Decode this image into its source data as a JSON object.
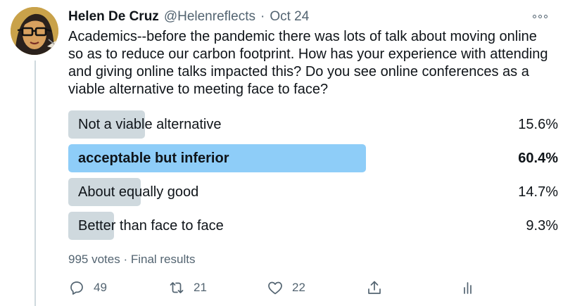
{
  "tweet": {
    "author": {
      "name": "Helen De Cruz",
      "handle": "@Helenreflects",
      "separator": "·",
      "date": "Oct 24"
    },
    "text": "Academics--before the pandemic there was lots of talk about moving online so as to reduce our carbon footprint. How has your experience with attending and giving online talks impacted this? Do you see online conferences as a viable alternative to meeting face to face?",
    "poll": {
      "options": [
        {
          "label": "Not a viable alternative",
          "percent_label": "15.6%",
          "percent": 15.6
        },
        {
          "label": "acceptable but inferior",
          "percent_label": "60.4%",
          "percent": 60.4,
          "winner": true
        },
        {
          "label": "About equally good",
          "percent_label": "14.7%",
          "percent": 14.7
        },
        {
          "label": "Better than face to face",
          "percent_label": "9.3%",
          "percent": 9.3
        }
      ],
      "summary": "995 votes · Final results",
      "bar_color": "#cfd9de",
      "winner_bar_color": "#8ecdf8"
    },
    "actions": {
      "replies": {
        "icon": "reply-icon",
        "count": "49"
      },
      "retweets": {
        "icon": "retweet-icon",
        "count": "21"
      },
      "likes": {
        "icon": "heart-icon",
        "count": "22"
      },
      "share": {
        "icon": "share-icon"
      },
      "analytics": {
        "icon": "analytics-icon"
      }
    }
  }
}
